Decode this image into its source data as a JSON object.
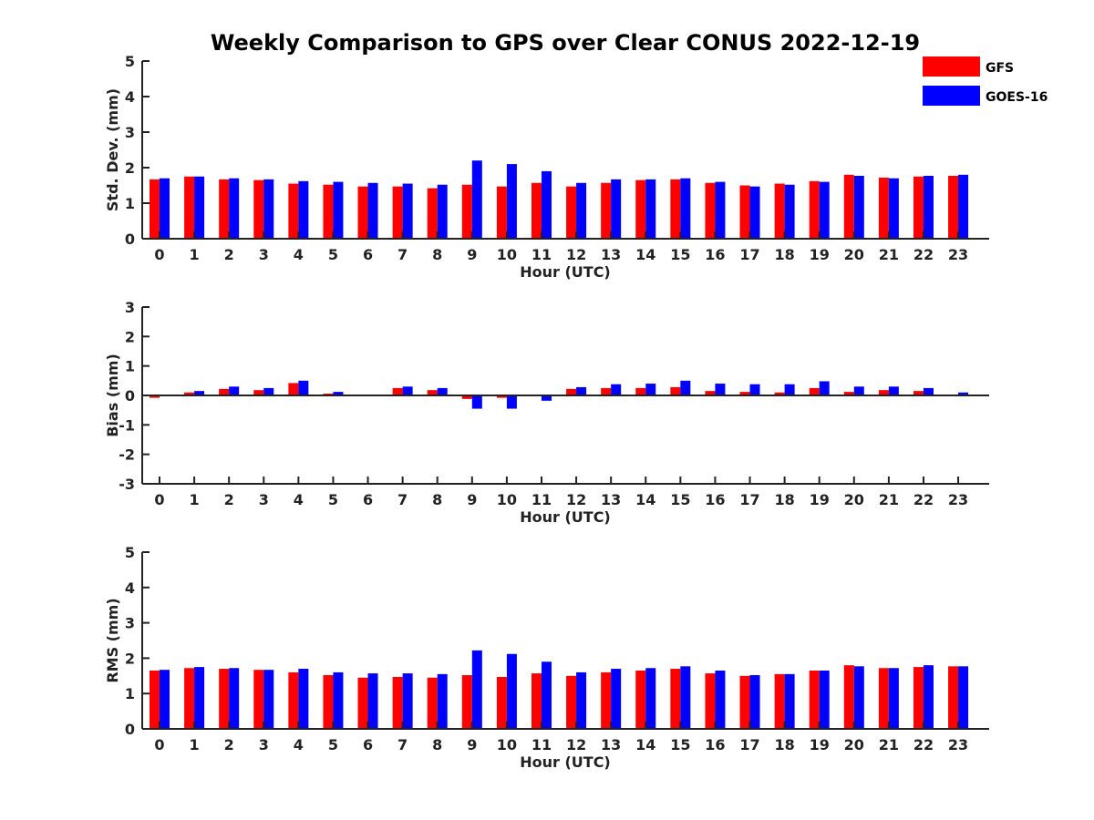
{
  "title": "Weekly Comparison to GPS over Clear CONUS 2022-12-19",
  "legend": {
    "placement": "top-right",
    "entries": [
      {
        "name": "GFS",
        "color": "#ff0000"
      },
      {
        "name": "GOES-16",
        "color": "#0000ff"
      }
    ]
  },
  "chart_data": [
    {
      "type": "bar",
      "title": "",
      "xlabel": "Hour (UTC)",
      "ylabel": "Std. Dev. (mm)",
      "ylim": [
        0,
        5
      ],
      "yticks": [
        "0",
        "1",
        "2",
        "3",
        "4",
        "5"
      ],
      "categories": [
        "0",
        "1",
        "2",
        "3",
        "4",
        "5",
        "6",
        "7",
        "8",
        "9",
        "10",
        "11",
        "12",
        "13",
        "14",
        "15",
        "16",
        "17",
        "18",
        "19",
        "20",
        "21",
        "22",
        "23"
      ],
      "grid": false,
      "series": [
        {
          "name": "GFS",
          "color": "#ff0000",
          "values": [
            1.67,
            1.75,
            1.67,
            1.65,
            1.55,
            1.52,
            1.47,
            1.47,
            1.42,
            1.52,
            1.47,
            1.57,
            1.47,
            1.57,
            1.65,
            1.67,
            1.57,
            1.5,
            1.55,
            1.62,
            1.8,
            1.72,
            1.75,
            1.77
          ]
        },
        {
          "name": "GOES-16",
          "color": "#0000ff",
          "values": [
            1.7,
            1.75,
            1.7,
            1.67,
            1.62,
            1.6,
            1.57,
            1.55,
            1.52,
            2.2,
            2.1,
            1.9,
            1.57,
            1.67,
            1.67,
            1.7,
            1.6,
            1.47,
            1.52,
            1.6,
            1.77,
            1.7,
            1.77,
            1.8
          ]
        }
      ]
    },
    {
      "type": "bar",
      "title": "",
      "xlabel": "Hour (UTC)",
      "ylabel": "Bias (mm)",
      "ylim": [
        -3,
        3
      ],
      "yticks": [
        "-3",
        "-2",
        "-1",
        "0",
        "1",
        "2",
        "3"
      ],
      "categories": [
        "0",
        "1",
        "2",
        "3",
        "4",
        "5",
        "6",
        "7",
        "8",
        "9",
        "10",
        "11",
        "12",
        "13",
        "14",
        "15",
        "16",
        "17",
        "18",
        "19",
        "20",
        "21",
        "22",
        "23"
      ],
      "grid": false,
      "series": [
        {
          "name": "GFS",
          "color": "#ff0000",
          "values": [
            -0.08,
            0.1,
            0.22,
            0.18,
            0.42,
            0.06,
            0.01,
            0.25,
            0.18,
            -0.12,
            -0.08,
            0.02,
            0.22,
            0.25,
            0.25,
            0.28,
            0.15,
            0.12,
            0.1,
            0.25,
            0.12,
            0.18,
            0.15,
            0.01
          ]
        },
        {
          "name": "GOES-16",
          "color": "#0000ff",
          "values": [
            0.0,
            0.15,
            0.3,
            0.25,
            0.5,
            0.12,
            0.03,
            0.3,
            0.25,
            -0.45,
            -0.45,
            -0.18,
            0.28,
            0.38,
            0.4,
            0.5,
            0.4,
            0.38,
            0.38,
            0.48,
            0.3,
            0.3,
            0.25,
            0.1
          ]
        }
      ]
    },
    {
      "type": "bar",
      "title": "",
      "xlabel": "Hour (UTC)",
      "ylabel": "RMS (mm)",
      "ylim": [
        0,
        5
      ],
      "yticks": [
        "0",
        "1",
        "2",
        "3",
        "4",
        "5"
      ],
      "categories": [
        "0",
        "1",
        "2",
        "3",
        "4",
        "5",
        "6",
        "7",
        "8",
        "9",
        "10",
        "11",
        "12",
        "13",
        "14",
        "15",
        "16",
        "17",
        "18",
        "19",
        "20",
        "21",
        "22",
        "23"
      ],
      "grid": false,
      "series": [
        {
          "name": "GFS",
          "color": "#ff0000",
          "values": [
            1.65,
            1.72,
            1.7,
            1.67,
            1.6,
            1.52,
            1.45,
            1.47,
            1.45,
            1.52,
            1.47,
            1.57,
            1.5,
            1.6,
            1.65,
            1.7,
            1.57,
            1.5,
            1.55,
            1.65,
            1.8,
            1.72,
            1.75,
            1.77
          ]
        },
        {
          "name": "GOES-16",
          "color": "#0000ff",
          "values": [
            1.67,
            1.75,
            1.72,
            1.67,
            1.7,
            1.6,
            1.57,
            1.57,
            1.55,
            2.22,
            2.12,
            1.9,
            1.6,
            1.7,
            1.72,
            1.77,
            1.65,
            1.52,
            1.55,
            1.65,
            1.77,
            1.72,
            1.8,
            1.77
          ]
        }
      ]
    }
  ]
}
